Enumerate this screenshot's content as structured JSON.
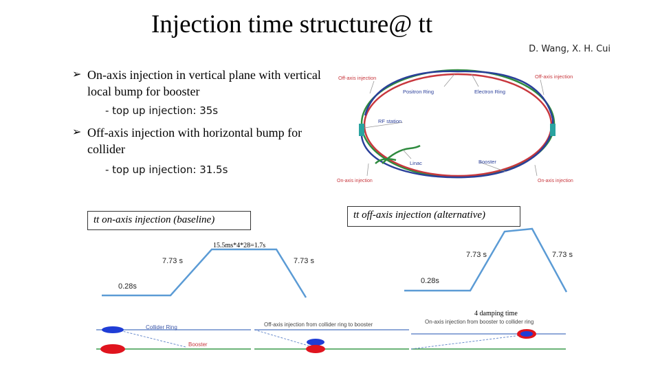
{
  "title": "Injection time structure@ tt",
  "authors": "D. Wang, X. H. Cui",
  "bullets": [
    {
      "text": "On-axis injection in vertical plane with vertical local bump for booster",
      "sub": "- top up injection: 35s"
    },
    {
      "text": "Off-axis injection with horizontal bump for collider",
      "sub": "- top up injection: 31.5s"
    }
  ],
  "ring_diagram": {
    "labels": {
      "off_axis_left": "Off-axis injection",
      "off_axis_right": "Off-axis injection",
      "positron_ring": "Positron Ring",
      "electron_ring": "Electron Ring",
      "rf_station": "RF station",
      "linac": "Linac",
      "booster": "Booster",
      "on_axis_left": "On-axis injection",
      "on_axis_right": "On-axis injection"
    },
    "colors": {
      "green": "#2e8b3e",
      "red": "#c8373d",
      "blue": "#2a3f9a",
      "teal": "#2aa3a0"
    }
  },
  "boxes": {
    "on_axis": "tt on-axis injection (baseline)",
    "off_axis": "tt off-axis injection (alternative)"
  },
  "plots": {
    "left": {
      "note": "15.5ms*4*28=1.7s",
      "top_left": "7.73 s",
      "top_right": "7.73 s",
      "bottom": "0.28s"
    },
    "right": {
      "note": "4 damping time",
      "top_left": "7.73 s",
      "top_right": "7.73 s",
      "bottom": "0.28s"
    },
    "line_color": "#5b9bd5"
  },
  "beam_diagrams": {
    "collider_ring": "Collider Ring",
    "booster": "Booster",
    "off_axis_caption": "Off-axis injection from collider ring to booster",
    "on_axis_caption": "On-axis injection from booster to collider ring"
  }
}
